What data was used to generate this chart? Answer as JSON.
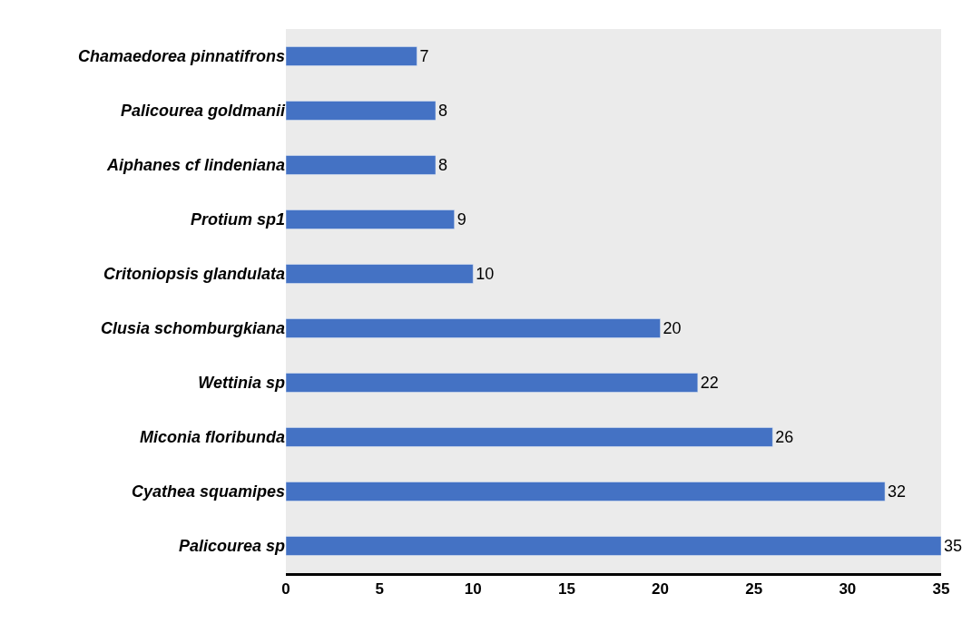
{
  "chart_data": {
    "type": "bar",
    "orientation": "horizontal",
    "categories": [
      "Chamaedorea pinnatifrons",
      "Palicourea goldmanii",
      "Aiphanes cf lindeniana",
      "Protium sp1",
      "Critoniopsis glandulata",
      "Clusia schomburgkiana",
      "Wettinia sp",
      "Miconia floribunda",
      "Cyathea squamipes",
      "Palicourea sp"
    ],
    "values": [
      7,
      8,
      8,
      9,
      10,
      20,
      22,
      26,
      32,
      35
    ],
    "color": "#4472c4",
    "xlim": [
      0,
      35
    ],
    "xticks": [
      0,
      5,
      10,
      15,
      20,
      25,
      30,
      35
    ],
    "data_labels": true,
    "grid": false,
    "legend": false
  }
}
